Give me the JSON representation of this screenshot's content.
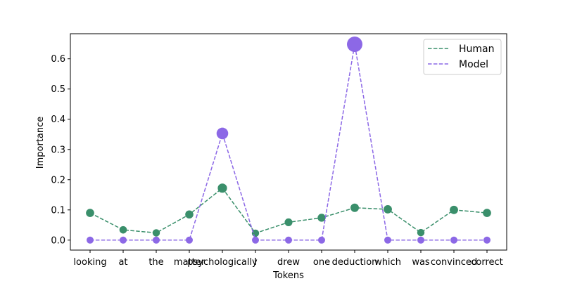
{
  "chart_data": {
    "type": "line",
    "title": "",
    "xlabel": "Tokens",
    "ylabel": "Importance",
    "categories": [
      "looking",
      "at",
      "the",
      "matter",
      "psychologically",
      "I",
      "drew",
      "one",
      "deduction",
      "which",
      "was",
      "convinced",
      "correct"
    ],
    "ylim": [
      -0.033,
      0.683
    ],
    "yticks": [
      0.0,
      0.1,
      0.2,
      0.3,
      0.4,
      0.5,
      0.6
    ],
    "ytick_labels": [
      "0.0",
      "0.1",
      "0.2",
      "0.3",
      "0.4",
      "0.5",
      "0.6"
    ],
    "grid": false,
    "legend_position": "upper right",
    "series": [
      {
        "name": "Human",
        "color": "#3a8f6b",
        "linestyle": "dashed",
        "marker": "circle",
        "values": [
          0.09,
          0.034,
          0.024,
          0.085,
          0.172,
          0.023,
          0.059,
          0.074,
          0.107,
          0.102,
          0.025,
          0.1,
          0.09
        ]
      },
      {
        "name": "Model",
        "color": "#8c68e6",
        "linestyle": "dashed",
        "marker": "circle",
        "values": [
          0.0,
          0.0,
          0.0,
          0.0,
          0.353,
          0.0,
          0.0,
          0.0,
          0.648,
          0.0,
          0.0,
          0.0,
          0.0
        ]
      }
    ]
  }
}
